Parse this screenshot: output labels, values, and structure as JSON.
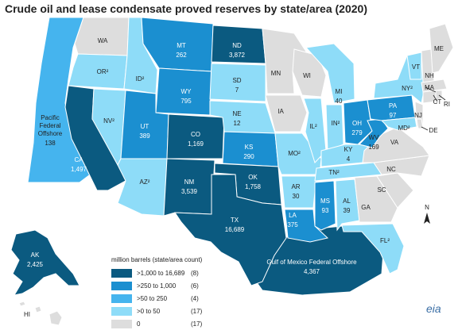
{
  "title": "Crude oil and lease condensate proved reserves by state/area (2020)",
  "colors": {
    "c1": "#0b5a80",
    "c2": "#1b8fd0",
    "c3": "#45b4ee",
    "c4": "#8edcf8",
    "c0": "#dddddd",
    "border": "#ffffff",
    "label_dark": "#ffffff",
    "label_light": "#222222"
  },
  "legend": {
    "title": "million barrels (state/area count)",
    "items": [
      {
        "range": ">1,000 to 16,689",
        "count": "(8)",
        "color": "#0b5a80"
      },
      {
        "range": ">250 to 1,000",
        "count": "(6)",
        "color": "#1b8fd0"
      },
      {
        "range": ">50 to 250",
        "count": "(4)",
        "color": "#45b4ee"
      },
      {
        "range": ">0 to 50",
        "count": "(17)",
        "color": "#8edcf8"
      },
      {
        "range": "0",
        "count": "(17)",
        "color": "#dddddd"
      }
    ]
  },
  "labels": {
    "WA": "WA",
    "OR": "OR²",
    "ID": "ID²",
    "MT": "MT",
    "MT_v": "262",
    "ND": "ND",
    "ND_v": "3,872",
    "MN": "MN",
    "WI": "WI",
    "MI": "MI",
    "MI_v": "40",
    "NY": "NY²",
    "VT": "VT",
    "ME": "ME",
    "NH": "NH",
    "MA": "MA",
    "RI": "RI",
    "CT": "CT",
    "PA": "PA",
    "PA_v": "97",
    "NJ": "NJ",
    "DE": "DE",
    "MD": "MD²",
    "OH": "OH",
    "OH_v": "279",
    "WV": "WV",
    "WV_v": "169",
    "IN": "IN²",
    "IL": "IL²",
    "IA": "IA",
    "SD": "SD",
    "SD_v": "7",
    "NE": "NE",
    "NE_v": "12",
    "WY": "WY",
    "WY_v": "795",
    "NV": "NV²",
    "UT": "UT",
    "UT_v": "389",
    "CO": "CO",
    "CO_v": "1,169",
    "KS": "KS",
    "KS_v": "290",
    "MO": "MO²",
    "KY": "KY",
    "KY_v": "4",
    "VA": "VA",
    "NC": "NC",
    "TN": "TN²",
    "SC": "SC",
    "AR": "AR",
    "AR_v": "30",
    "OK": "OK",
    "OK_v": "1,758",
    "NM": "NM",
    "NM_v": "3,539",
    "AZ": "AZ²",
    "CA": "CA",
    "CA_v": "1,497",
    "TX": "TX",
    "TX_v": "16,689",
    "LA": "LA",
    "LA_v": "375",
    "MS": "MS",
    "MS_v": "93",
    "AL": "AL",
    "AL_v": "39",
    "GA": "GA",
    "FL": "FL²",
    "AK": "AK",
    "AK_v": "2,425",
    "HI": "HI",
    "PFO1": "Pacific",
    "PFO2": "Federal",
    "PFO3": "Offshore",
    "PFO_v": "138",
    "GOM1": "Gulf of Mexico Federal Offshore",
    "GOM_v": "4,367",
    "north": "N"
  },
  "brand": "eia"
}
